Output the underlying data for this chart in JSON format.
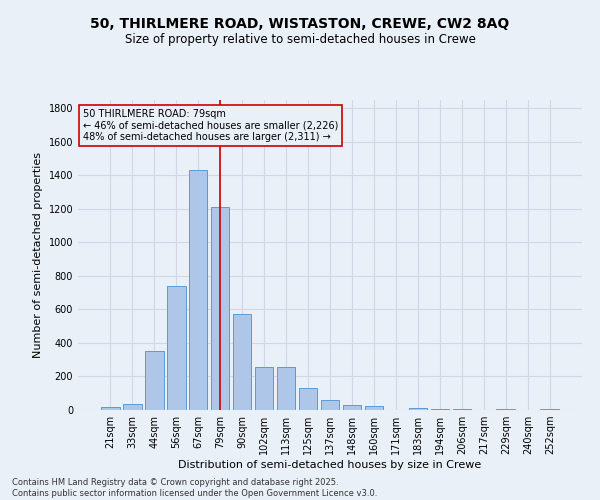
{
  "title_line1": "50, THIRLMERE ROAD, WISTASTON, CREWE, CW2 8AQ",
  "title_line2": "Size of property relative to semi-detached houses in Crewe",
  "xlabel": "Distribution of semi-detached houses by size in Crewe",
  "ylabel": "Number of semi-detached properties",
  "categories": [
    "21sqm",
    "33sqm",
    "44sqm",
    "56sqm",
    "67sqm",
    "79sqm",
    "90sqm",
    "102sqm",
    "113sqm",
    "125sqm",
    "137sqm",
    "148sqm",
    "160sqm",
    "171sqm",
    "183sqm",
    "194sqm",
    "206sqm",
    "217sqm",
    "229sqm",
    "240sqm",
    "252sqm"
  ],
  "values": [
    15,
    38,
    350,
    740,
    1430,
    1210,
    575,
    258,
    258,
    130,
    60,
    32,
    25,
    0,
    12,
    5,
    5,
    0,
    5,
    0,
    8
  ],
  "bar_color": "#aec6e8",
  "bar_edge_color": "#5b9bd5",
  "highlight_index": 5,
  "highlight_line_color": "#cc0000",
  "annotation_line1": "50 THIRLMERE ROAD: 79sqm",
  "annotation_line2": "← 46% of semi-detached houses are smaller (2,226)",
  "annotation_line3": "48% of semi-detached houses are larger (2,311) →",
  "annotation_box_color": "#cc0000",
  "ylim": [
    0,
    1850
  ],
  "yticks": [
    0,
    200,
    400,
    600,
    800,
    1000,
    1200,
    1400,
    1600,
    1800
  ],
  "grid_color": "#d0d8e8",
  "background_color": "#eaf0f8",
  "footer_line1": "Contains HM Land Registry data © Crown copyright and database right 2025.",
  "footer_line2": "Contains public sector information licensed under the Open Government Licence v3.0.",
  "title_fontsize": 10,
  "subtitle_fontsize": 8.5,
  "axis_label_fontsize": 8,
  "tick_fontsize": 7,
  "annotation_fontsize": 7,
  "footer_fontsize": 6
}
